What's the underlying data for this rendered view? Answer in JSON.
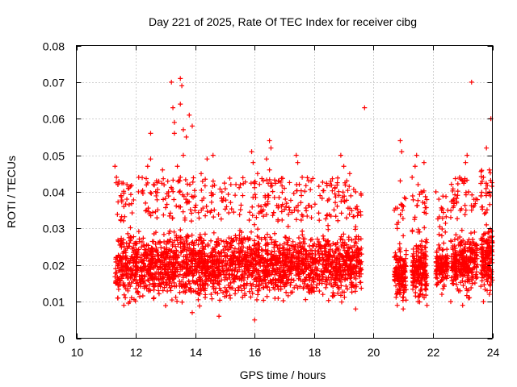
{
  "chart_data": {
    "type": "scatter",
    "title": "Day 221 of 2025, Rate Of TEC Index for receiver cibg",
    "xlabel": "GPS time / hours",
    "ylabel": "ROTI / TECUs",
    "xlim": [
      10,
      24
    ],
    "ylim": [
      0,
      0.08
    ],
    "x_ticks": [
      10,
      12,
      14,
      16,
      18,
      20,
      22,
      24
    ],
    "x_tick_labels": [
      "10",
      "12",
      "14",
      "16",
      "18",
      "20",
      "22",
      "24"
    ],
    "y_ticks": [
      0,
      0.01,
      0.02,
      0.03,
      0.04,
      0.05,
      0.06,
      0.07,
      0.08
    ],
    "y_tick_labels": [
      "0",
      "0.01",
      "0.02",
      "0.03",
      "0.04",
      "0.05",
      "0.06",
      "0.07",
      "0.08"
    ],
    "grid": true,
    "marker": "plus",
    "color": "#ff0000",
    "series": [
      {
        "name": "ROTI",
        "points": [
          [
            11.3,
            0.047
          ],
          [
            11.35,
            0.044
          ],
          [
            11.4,
            0.042
          ],
          [
            11.5,
            0.039
          ],
          [
            11.6,
            0.036
          ],
          [
            11.7,
            0.038
          ],
          [
            11.4,
            0.011
          ],
          [
            11.6,
            0.009
          ],
          [
            11.8,
            0.01
          ],
          [
            12.1,
            0.044
          ],
          [
            12.4,
            0.047
          ],
          [
            12.5,
            0.056
          ],
          [
            12.5,
            0.049
          ],
          [
            12.6,
            0.042
          ],
          [
            12.7,
            0.043
          ],
          [
            12.9,
            0.046
          ],
          [
            13.1,
            0.04
          ],
          [
            13.2,
            0.07
          ],
          [
            13.25,
            0.063
          ],
          [
            13.3,
            0.059
          ],
          [
            13.3,
            0.056
          ],
          [
            13.5,
            0.071
          ],
          [
            13.55,
            0.069
          ],
          [
            13.5,
            0.064
          ],
          [
            13.6,
            0.057
          ],
          [
            13.7,
            0.055
          ],
          [
            13.8,
            0.061
          ],
          [
            13.9,
            0.058
          ],
          [
            13.6,
            0.05
          ],
          [
            13.4,
            0.047
          ],
          [
            13.5,
            0.044
          ],
          [
            14.4,
            0.049
          ],
          [
            14.6,
            0.05
          ],
          [
            14.2,
            0.045
          ],
          [
            14.9,
            0.04
          ],
          [
            15.2,
            0.042
          ],
          [
            15.6,
            0.039
          ],
          [
            15.9,
            0.051
          ],
          [
            15.95,
            0.048
          ],
          [
            16.1,
            0.045
          ],
          [
            16.5,
            0.054
          ],
          [
            16.55,
            0.052
          ],
          [
            16.4,
            0.049
          ],
          [
            16.5,
            0.046
          ],
          [
            16.8,
            0.043
          ],
          [
            17.0,
            0.041
          ],
          [
            17.4,
            0.05
          ],
          [
            17.45,
            0.048
          ],
          [
            17.6,
            0.044
          ],
          [
            17.9,
            0.043
          ],
          [
            18.2,
            0.039
          ],
          [
            18.5,
            0.038
          ],
          [
            18.7,
            0.041
          ],
          [
            18.9,
            0.05
          ],
          [
            19.0,
            0.047
          ],
          [
            19.1,
            0.043
          ],
          [
            19.2,
            0.045
          ],
          [
            19.4,
            0.04
          ],
          [
            19.7,
            0.063
          ],
          [
            19.5,
            0.027
          ],
          [
            19.6,
            0.023
          ],
          [
            19.4,
            0.008
          ],
          [
            16.0,
            0.005
          ],
          [
            14.8,
            0.006
          ],
          [
            13.9,
            0.007
          ],
          [
            20.7,
            0.035
          ],
          [
            20.8,
            0.03
          ],
          [
            20.9,
            0.054
          ],
          [
            20.95,
            0.051
          ],
          [
            20.9,
            0.043
          ],
          [
            21.0,
            0.028
          ],
          [
            21.1,
            0.024
          ],
          [
            20.8,
            0.009
          ],
          [
            21.0,
            0.008
          ],
          [
            21.3,
            0.044
          ],
          [
            21.4,
            0.047
          ],
          [
            21.45,
            0.05
          ],
          [
            21.5,
            0.042
          ],
          [
            21.6,
            0.04
          ],
          [
            21.7,
            0.048
          ],
          [
            21.5,
            0.029
          ],
          [
            21.7,
            0.022
          ],
          [
            21.5,
            0.01
          ],
          [
            21.8,
            0.009
          ],
          [
            22.1,
            0.04
          ],
          [
            22.2,
            0.038
          ],
          [
            22.3,
            0.028
          ],
          [
            22.5,
            0.035
          ],
          [
            22.6,
            0.033
          ],
          [
            22.7,
            0.038
          ],
          [
            22.8,
            0.037
          ],
          [
            22.3,
            0.012
          ],
          [
            22.6,
            0.01
          ],
          [
            22.9,
            0.044
          ],
          [
            23.0,
            0.043
          ],
          [
            23.1,
            0.048
          ],
          [
            23.15,
            0.05
          ],
          [
            23.3,
            0.07
          ],
          [
            23.2,
            0.04
          ],
          [
            23.3,
            0.035
          ],
          [
            23.4,
            0.029
          ],
          [
            23.2,
            0.011
          ],
          [
            23.0,
            0.009
          ],
          [
            23.7,
            0.044
          ],
          [
            23.8,
            0.052
          ],
          [
            23.9,
            0.046
          ],
          [
            23.95,
            0.06
          ],
          [
            23.9,
            0.04
          ],
          [
            23.8,
            0.031
          ],
          [
            23.9,
            0.012
          ],
          [
            23.7,
            0.01
          ]
        ]
      }
    ],
    "dense_band": {
      "description": "Dense ROTI scatter clusters",
      "segments": [
        {
          "x_range": [
            11.3,
            19.6
          ],
          "y_range": [
            0.008,
            0.032
          ],
          "density": 2600
        },
        {
          "x_range": [
            20.7,
            21.1
          ],
          "y_range": [
            0.008,
            0.028
          ],
          "density": 160
        },
        {
          "x_range": [
            21.3,
            21.8
          ],
          "y_range": [
            0.008,
            0.029
          ],
          "density": 200
        },
        {
          "x_range": [
            22.1,
            22.5
          ],
          "y_range": [
            0.011,
            0.028
          ],
          "density": 130
        },
        {
          "x_range": [
            22.6,
            23.5
          ],
          "y_range": [
            0.01,
            0.032
          ],
          "density": 320
        },
        {
          "x_range": [
            23.6,
            24.0
          ],
          "y_range": [
            0.01,
            0.034
          ],
          "density": 180
        }
      ]
    }
  }
}
